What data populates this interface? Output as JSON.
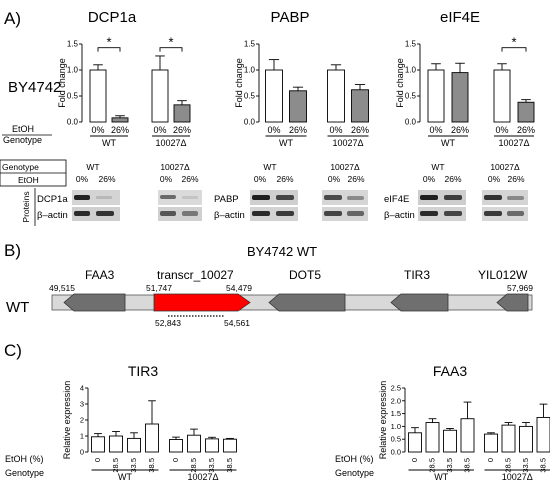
{
  "panelA": {
    "letter": "A)",
    "strain": "BY4742",
    "genes": [
      "DCP1a",
      "PABP",
      "eIF4E"
    ],
    "ylabel": "Fold change",
    "yticks": [
      "0.0",
      "0.5",
      "1.0",
      "1.5"
    ],
    "etoh_label": "EtOH",
    "genotype_label": "Genotype",
    "etoh_ticks": [
      "0%",
      "26%",
      "0%",
      "26%"
    ],
    "genotypes": [
      "WT",
      "10027Δ"
    ],
    "star": "*",
    "blot": {
      "genotype_label": "Genotype",
      "etoh_label": "EtOH",
      "proteins_label": "Proteins",
      "actin": "β–actin"
    }
  },
  "chart_data": [
    {
      "type": "bar",
      "title": "DCP1a",
      "ylabel": "Fold change",
      "ylim": [
        0,
        1.5
      ],
      "categories": [
        "WT 0%",
        "WT 26%",
        "10027Δ 0%",
        "10027Δ 26%"
      ],
      "values": [
        1.0,
        0.08,
        1.0,
        0.33
      ],
      "errors": [
        0.1,
        0.04,
        0.27,
        0.08
      ],
      "fill": [
        "white",
        "gray",
        "white",
        "gray"
      ]
    },
    {
      "type": "bar",
      "title": "PABP",
      "ylabel": "Fold change",
      "ylim": [
        0,
        1.5
      ],
      "categories": [
        "WT 0%",
        "WT 26%",
        "10027Δ 0%",
        "10027Δ 26%"
      ],
      "values": [
        1.0,
        0.6,
        1.0,
        0.62
      ],
      "errors": [
        0.2,
        0.07,
        0.1,
        0.1
      ],
      "fill": [
        "white",
        "gray",
        "white",
        "gray"
      ]
    },
    {
      "type": "bar",
      "title": "eIF4E",
      "ylabel": "Fold change",
      "ylim": [
        0,
        1.5
      ],
      "categories": [
        "WT 0%",
        "WT 26%",
        "10027Δ 0%",
        "10027Δ 26%"
      ],
      "values": [
        1.0,
        0.95,
        1.0,
        0.38
      ],
      "errors": [
        0.12,
        0.18,
        0.12,
        0.05
      ],
      "fill": [
        "white",
        "gray",
        "white",
        "gray"
      ]
    },
    {
      "type": "bar",
      "title": "TIR3",
      "ylabel": "Relative expression",
      "ylim": [
        0,
        4
      ],
      "yticks": [
        0,
        1,
        2,
        3,
        4
      ],
      "categories": [
        "WT 0",
        "WT 28.5",
        "WT 33.5",
        "WT 38.5",
        "10027Δ 0",
        "10027Δ 28.5",
        "10027Δ 33.5",
        "10027Δ 38.5"
      ],
      "values": [
        0.95,
        1.0,
        0.85,
        1.75,
        0.78,
        1.05,
        0.82,
        0.8
      ],
      "errors": [
        0.2,
        0.28,
        0.35,
        1.45,
        0.15,
        0.38,
        0.1,
        0.05
      ]
    },
    {
      "type": "bar",
      "title": "FAA3",
      "ylabel": "Relative expression",
      "ylim": [
        0,
        2.5
      ],
      "yticks": [
        0,
        0.5,
        1,
        1.5,
        2,
        2.5
      ],
      "categories": [
        "WT 0",
        "WT 28.5",
        "WT 33.5",
        "WT 38.5",
        "10027Δ 0",
        "10027Δ 28.5",
        "10027Δ 33.5",
        "10027Δ 38.5"
      ],
      "values": [
        0.75,
        1.15,
        0.85,
        1.3,
        0.7,
        1.05,
        1.0,
        1.35
      ],
      "errors": [
        0.2,
        0.15,
        0.07,
        0.65,
        0.05,
        0.1,
        0.15,
        0.52
      ]
    }
  ],
  "panelB": {
    "letter": "B)",
    "title": "BY4742 WT",
    "row_label": "WT",
    "genes": [
      "FAA3",
      "transcr_10027",
      "DOT5",
      "TIR3",
      "YIL012W"
    ],
    "coords": [
      "49,515",
      "51,747",
      "54,479",
      "57,969",
      "52,843",
      "54,561"
    ]
  },
  "panelC": {
    "letter": "C)",
    "ylabel": "Relative expression",
    "etoh_label": "EtOH (%)",
    "genotype_label": "Genotype",
    "dose_ticks": [
      "0",
      "28.5",
      "33.5",
      "38.5",
      "0",
      "28.5",
      "33.5",
      "38.5"
    ],
    "genotypes": [
      "WT",
      "10027Δ"
    ],
    "tir3_yticks": [
      "0",
      "1",
      "2",
      "3",
      "4"
    ],
    "faa3_yticks": [
      "0.0",
      "0.5",
      "1.0",
      "1.5",
      "2.0",
      "2.5"
    ]
  },
  "colors": {
    "gray_bar": "#8c8c8c",
    "red_gene": "#ff0000",
    "gene_arrow": "#6f6f6f",
    "chromosome": "#d9d9d9"
  }
}
